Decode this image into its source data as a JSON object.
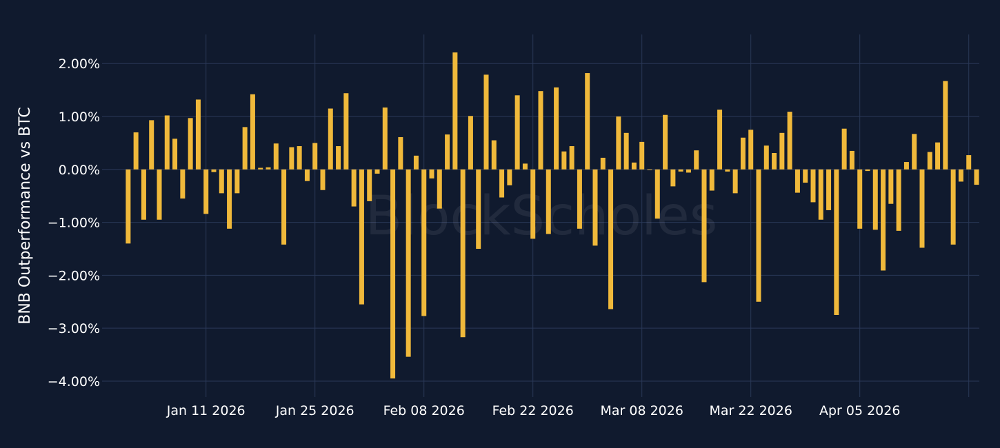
{
  "chart_data": {
    "type": "bar",
    "ylabel": "BNB Outperformance vs BTC",
    "watermark": "BlockScholes",
    "ylim": [
      -4.3,
      2.55
    ],
    "y_ticks": [
      {
        "value": 2.0,
        "label": "2.00%"
      },
      {
        "value": 1.0,
        "label": "1.00%"
      },
      {
        "value": 0.0,
        "label": "0.00%"
      },
      {
        "value": -1.0,
        "label": "−1.00%"
      },
      {
        "value": -2.0,
        "label": "−2.00%"
      },
      {
        "value": -3.0,
        "label": "−3.00%"
      },
      {
        "value": -4.0,
        "label": "−4.00%"
      }
    ],
    "x_ticks": [
      {
        "date": "2026-01-11",
        "label": "Jan 11 2026"
      },
      {
        "date": "2026-01-25",
        "label": "Jan 25 2026"
      },
      {
        "date": "2026-02-08",
        "label": "Feb 08 2026"
      },
      {
        "date": "2026-02-22",
        "label": "Feb 22 2026"
      },
      {
        "date": "2026-03-08",
        "label": "Mar 08 2026"
      },
      {
        "date": "2026-03-22",
        "label": "Mar 22 2026"
      },
      {
        "date": "2026-04-05",
        "label": "Apr 05 2026"
      },
      {
        "date": "2026-04-19",
        "label": ""
      }
    ],
    "x_range": [
      "2025-12-29",
      "2026-04-20"
    ],
    "bar_color": "#f0b93b",
    "grid": true,
    "series": [
      {
        "values": [
          {
            "date": "2026-01-01",
            "value": -1.4
          },
          {
            "date": "2026-01-02",
            "value": 0.7
          },
          {
            "date": "2026-01-03",
            "value": -0.95
          },
          {
            "date": "2026-01-04",
            "value": 0.93
          },
          {
            "date": "2026-01-05",
            "value": -0.95
          },
          {
            "date": "2026-01-06",
            "value": 1.02
          },
          {
            "date": "2026-01-07",
            "value": 0.58
          },
          {
            "date": "2026-01-08",
            "value": -0.55
          },
          {
            "date": "2026-01-09",
            "value": 0.97
          },
          {
            "date": "2026-01-10",
            "value": 1.32
          },
          {
            "date": "2026-01-11",
            "value": -0.84
          },
          {
            "date": "2026-01-12",
            "value": -0.05
          },
          {
            "date": "2026-01-13",
            "value": -0.45
          },
          {
            "date": "2026-01-14",
            "value": -1.12
          },
          {
            "date": "2026-01-15",
            "value": -0.45
          },
          {
            "date": "2026-01-16",
            "value": 0.8
          },
          {
            "date": "2026-01-17",
            "value": 1.42
          },
          {
            "date": "2026-01-18",
            "value": 0.03
          },
          {
            "date": "2026-01-19",
            "value": 0.04
          },
          {
            "date": "2026-01-20",
            "value": 0.49
          },
          {
            "date": "2026-01-21",
            "value": -1.42
          },
          {
            "date": "2026-01-22",
            "value": 0.42
          },
          {
            "date": "2026-01-23",
            "value": 0.44
          },
          {
            "date": "2026-01-24",
            "value": -0.22
          },
          {
            "date": "2026-01-25",
            "value": 0.5
          },
          {
            "date": "2026-01-26",
            "value": -0.39
          },
          {
            "date": "2026-01-27",
            "value": 1.15
          },
          {
            "date": "2026-01-28",
            "value": 0.44
          },
          {
            "date": "2026-01-29",
            "value": 1.44
          },
          {
            "date": "2026-01-30",
            "value": -0.7
          },
          {
            "date": "2026-01-31",
            "value": -2.55
          },
          {
            "date": "2026-02-01",
            "value": -0.6
          },
          {
            "date": "2026-02-02",
            "value": -0.08
          },
          {
            "date": "2026-02-03",
            "value": 1.17
          },
          {
            "date": "2026-02-04",
            "value": -3.95
          },
          {
            "date": "2026-02-05",
            "value": 0.61
          },
          {
            "date": "2026-02-06",
            "value": -3.54
          },
          {
            "date": "2026-02-07",
            "value": 0.26
          },
          {
            "date": "2026-02-08",
            "value": -2.77
          },
          {
            "date": "2026-02-09",
            "value": -0.17
          },
          {
            "date": "2026-02-10",
            "value": -0.74
          },
          {
            "date": "2026-02-11",
            "value": 0.66
          },
          {
            "date": "2026-02-12",
            "value": 2.21
          },
          {
            "date": "2026-02-13",
            "value": -3.17
          },
          {
            "date": "2026-02-14",
            "value": 1.01
          },
          {
            "date": "2026-02-15",
            "value": -1.5
          },
          {
            "date": "2026-02-16",
            "value": 1.79
          },
          {
            "date": "2026-02-17",
            "value": 0.55
          },
          {
            "date": "2026-02-18",
            "value": -0.53
          },
          {
            "date": "2026-02-19",
            "value": -0.3
          },
          {
            "date": "2026-02-20",
            "value": 1.4
          },
          {
            "date": "2026-02-21",
            "value": 0.11
          },
          {
            "date": "2026-02-22",
            "value": -1.31
          },
          {
            "date": "2026-02-23",
            "value": 1.48
          },
          {
            "date": "2026-02-24",
            "value": -1.22
          },
          {
            "date": "2026-02-25",
            "value": 1.55
          },
          {
            "date": "2026-02-26",
            "value": 0.34
          },
          {
            "date": "2026-02-27",
            "value": 0.44
          },
          {
            "date": "2026-02-28",
            "value": -1.12
          },
          {
            "date": "2026-03-01",
            "value": 1.82
          },
          {
            "date": "2026-03-02",
            "value": -1.44
          },
          {
            "date": "2026-03-03",
            "value": 0.22
          },
          {
            "date": "2026-03-04",
            "value": -2.64
          },
          {
            "date": "2026-03-05",
            "value": 1.0
          },
          {
            "date": "2026-03-06",
            "value": 0.69
          },
          {
            "date": "2026-03-07",
            "value": 0.13
          },
          {
            "date": "2026-03-08",
            "value": 0.52
          },
          {
            "date": "2026-03-09",
            "value": -0.01
          },
          {
            "date": "2026-03-10",
            "value": -0.93
          },
          {
            "date": "2026-03-11",
            "value": 1.03
          },
          {
            "date": "2026-03-12",
            "value": -0.32
          },
          {
            "date": "2026-03-13",
            "value": -0.04
          },
          {
            "date": "2026-03-14",
            "value": -0.06
          },
          {
            "date": "2026-03-15",
            "value": 0.36
          },
          {
            "date": "2026-03-16",
            "value": -2.13
          },
          {
            "date": "2026-03-17",
            "value": -0.4
          },
          {
            "date": "2026-03-18",
            "value": 1.13
          },
          {
            "date": "2026-03-19",
            "value": -0.04
          },
          {
            "date": "2026-03-20",
            "value": -0.45
          },
          {
            "date": "2026-03-21",
            "value": 0.6
          },
          {
            "date": "2026-03-22",
            "value": 0.75
          },
          {
            "date": "2026-03-23",
            "value": -2.5
          },
          {
            "date": "2026-03-24",
            "value": 0.45
          },
          {
            "date": "2026-03-25",
            "value": 0.31
          },
          {
            "date": "2026-03-26",
            "value": 0.69
          },
          {
            "date": "2026-03-27",
            "value": 1.09
          },
          {
            "date": "2026-03-28",
            "value": -0.44
          },
          {
            "date": "2026-03-29",
            "value": -0.25
          },
          {
            "date": "2026-03-30",
            "value": -0.62
          },
          {
            "date": "2026-03-31",
            "value": -0.95
          },
          {
            "date": "2026-04-01",
            "value": -0.77
          },
          {
            "date": "2026-04-02",
            "value": -2.75
          },
          {
            "date": "2026-04-03",
            "value": 0.77
          },
          {
            "date": "2026-04-04",
            "value": 0.35
          },
          {
            "date": "2026-04-05",
            "value": -1.12
          },
          {
            "date": "2026-04-06",
            "value": -0.03
          },
          {
            "date": "2026-04-07",
            "value": -1.14
          },
          {
            "date": "2026-04-08",
            "value": -1.91
          },
          {
            "date": "2026-04-09",
            "value": -0.65
          },
          {
            "date": "2026-04-10",
            "value": -1.16
          },
          {
            "date": "2026-04-11",
            "value": 0.14
          },
          {
            "date": "2026-04-12",
            "value": 0.67
          },
          {
            "date": "2026-04-13",
            "value": -1.48
          },
          {
            "date": "2026-04-14",
            "value": 0.33
          },
          {
            "date": "2026-04-15",
            "value": 0.51
          },
          {
            "date": "2026-04-16",
            "value": 1.67
          },
          {
            "date": "2026-04-17",
            "value": -1.42
          },
          {
            "date": "2026-04-18",
            "value": -0.23
          },
          {
            "date": "2026-04-19",
            "value": 0.27
          },
          {
            "date": "2026-04-20",
            "value": -0.29
          }
        ]
      }
    ]
  }
}
